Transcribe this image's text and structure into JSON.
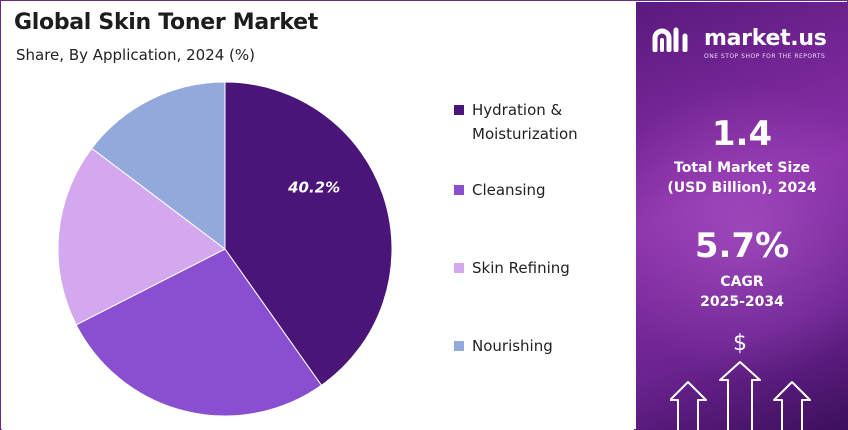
{
  "title": "Global Skin Toner Market",
  "subtitle": "Share, By Application, 2024 (%)",
  "chart_data": {
    "type": "pie",
    "title": "Global Skin Toner Market",
    "subtitle": "Share, By Application, 2024 (%)",
    "categories": [
      "Hydration & Moisturization",
      "Cleansing",
      "Skin Refining",
      "Nourishing"
    ],
    "values": [
      40.2,
      27.3,
      17.8,
      14.7
    ],
    "colors": [
      "#4a1578",
      "#8a4fd0",
      "#d4a8ee",
      "#93a9dc"
    ],
    "data_labels": [
      "40.2%",
      "",
      "",
      ""
    ],
    "start_angle_deg": 0,
    "direction": "clockwise",
    "legend_position": "right"
  },
  "legend": [
    {
      "lines": [
        "Hydration &",
        "Moisturization"
      ],
      "color": "#4a1578"
    },
    {
      "lines": [
        "Cleansing"
      ],
      "color": "#8a4fd0"
    },
    {
      "lines": [
        "Skin Refining"
      ],
      "color": "#d4a8ee"
    },
    {
      "lines": [
        "Nourishing"
      ],
      "color": "#93a9dc"
    }
  ],
  "sidebar": {
    "brand_name": "market.us",
    "brand_tagline": "ONE STOP SHOP FOR THE REPORTS",
    "market_size_value": "1.4",
    "market_size_label": [
      "Total Market Size",
      "(USD Billion), 2024"
    ],
    "cagr_value": "5.7%",
    "cagr_label": [
      "CAGR",
      "2025-2034"
    ],
    "currency_symbol": "$"
  }
}
